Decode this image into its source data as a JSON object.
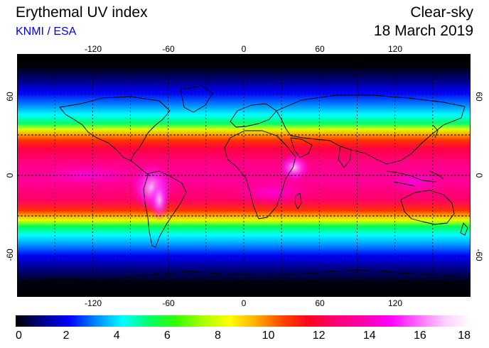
{
  "header": {
    "title": "Erythemal UV index",
    "credit": "KNMI / ESA",
    "mode": "Clear-sky",
    "date": "18 March 2019"
  },
  "map": {
    "projection": "equirectangular",
    "lon_range": [
      -180,
      180
    ],
    "lat_range": [
      -90,
      90
    ],
    "lon_ticks": [
      "-120",
      "-60",
      "0",
      "60",
      "120"
    ],
    "lat_ticks": [
      "60",
      "0",
      "-60"
    ],
    "dashed_latitudes": [
      30,
      0,
      -30
    ],
    "land_outline_color": "#000000"
  },
  "colorbar": {
    "min": 0,
    "max": 18,
    "tick_labels": [
      "0",
      "2",
      "4",
      "6",
      "8",
      "10",
      "12",
      "14",
      "16",
      "18"
    ],
    "colors": [
      "#000000",
      "#000088",
      "#0000ff",
      "#0088ff",
      "#00ffff",
      "#00ff66",
      "#33ff00",
      "#aaff00",
      "#ffff00",
      "#ffaa00",
      "#ff4400",
      "#ff0022",
      "#ff0077",
      "#ff00aa",
      "#ff00ff",
      "#ff66ff",
      "#ffccff",
      "#ffffff"
    ]
  }
}
